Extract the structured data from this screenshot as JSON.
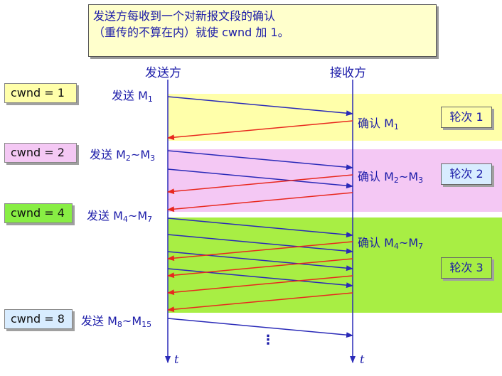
{
  "note": {
    "line1": "发送方每收到一个对新报文段的确认",
    "line2": "（重传的不算在内）就使 cwnd 加 1。"
  },
  "headers": {
    "sender": "发送方",
    "receiver": "接收方"
  },
  "cwnd": [
    {
      "text": "cwnd = 1",
      "color": "#ffffaa"
    },
    {
      "text": "cwnd = 2",
      "color": "#f4c8f4"
    },
    {
      "text": "cwnd = 4",
      "color": "#88ee44"
    },
    {
      "text": "cwnd = 8",
      "color": "#d8ecff"
    }
  ],
  "send": [
    {
      "verb": "发送 ",
      "a": "M",
      "as": "1",
      "sep": "",
      "b": "",
      "bs": ""
    },
    {
      "verb": "发送 ",
      "a": "M",
      "as": "2",
      "sep": "~",
      "b": "M",
      "bs": "3"
    },
    {
      "verb": "发送 ",
      "a": "M",
      "as": "4",
      "sep": "~",
      "b": "M",
      "bs": "7"
    },
    {
      "verb": "发送 ",
      "a": "M",
      "as": "8",
      "sep": "~",
      "b": "M",
      "bs": "15"
    }
  ],
  "ack": [
    {
      "verb": "确认 ",
      "a": "M",
      "as": "1",
      "sep": "",
      "b": "",
      "bs": ""
    },
    {
      "verb": "确认 ",
      "a": "M",
      "as": "2",
      "sep": "~",
      "b": "M",
      "bs": "3"
    },
    {
      "verb": "确认 ",
      "a": "M",
      "as": "4",
      "sep": "~",
      "b": "M",
      "bs": "7"
    }
  ],
  "rounds": [
    "轮次 1",
    "轮次 2",
    "轮次 3"
  ],
  "time_label": "t",
  "ellipsis": "⋮",
  "colors": {
    "band1": "#ffffaa",
    "band2": "#f4c8f4",
    "band3": "#a8ee44",
    "round1": "#ffffaa",
    "round2": "#d8ecff",
    "round3": "#a8ee44",
    "data_arrow": "#2a2ab8",
    "ack_arrow": "#e8281e",
    "axis": "#2a2ab8"
  }
}
